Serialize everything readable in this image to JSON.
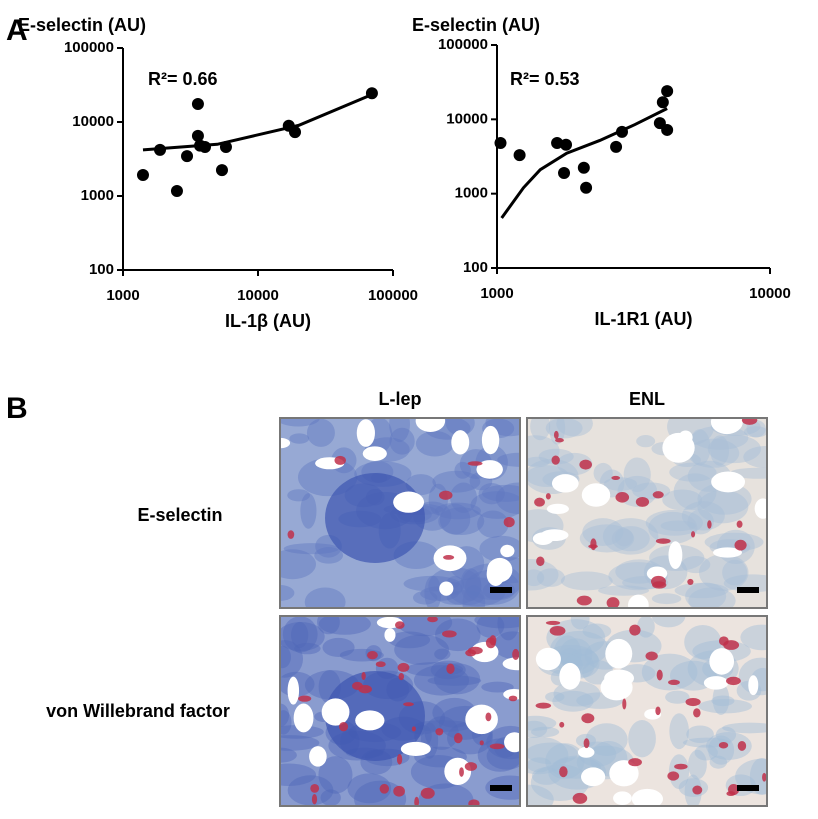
{
  "panel_labels": [
    "A",
    "B"
  ],
  "chart_data": [
    {
      "type": "scatter",
      "ylabel": "E-selectin (AU)",
      "xlabel": "IL-1β (AU)",
      "annotation": "R²= 0.66",
      "xlog": true,
      "ylog": true,
      "xlim": [
        1000,
        100000
      ],
      "xticks": [
        1000,
        10000,
        100000
      ],
      "ylim": [
        100,
        100000
      ],
      "yticks": [
        100,
        1000,
        10000,
        100000
      ],
      "series": [
        {
          "color": "#000000",
          "x": [
            1406,
            1880,
            2510,
            2980,
            3590,
            3590,
            3720,
            4050,
            5790,
            5410,
            16900,
            18800,
            69800
          ],
          "values": [
            1920,
            4200,
            1170,
            3460,
            17500,
            6500,
            4800,
            4600,
            4600,
            2240,
            8900,
            7300,
            24500
          ]
        }
      ],
      "fit": {
        "color": "#000000",
        "x": [
          1406,
          5000,
          20000,
          70000
        ],
        "values": [
          4200,
          5000,
          9000,
          23500
        ]
      }
    },
    {
      "type": "scatter",
      "ylabel": "E-selectin (AU)",
      "xlabel": "IL-1R1 (AU)",
      "annotation": "R²= 0.53",
      "xlog": true,
      "ylog": true,
      "xlim": [
        1000,
        10000
      ],
      "xticks": [
        1000,
        10000
      ],
      "ylim": [
        100,
        100000
      ],
      "yticks": [
        100,
        1000,
        10000,
        100000
      ],
      "series": [
        {
          "color": "#000000",
          "x": [
            1030,
            1210,
            1660,
            1760,
            1790,
            2080,
            2120,
            2730,
            2870,
            3950,
            4050,
            4200,
            4200
          ],
          "values": [
            4800,
            3300,
            4800,
            1900,
            4550,
            2230,
            1200,
            4260,
            6770,
            8900,
            17000,
            24000,
            7200
          ]
        }
      ],
      "fit": {
        "color": "#000000",
        "x": [
          1040,
          1250,
          1440,
          1800,
          2380,
          3200,
          4200
        ],
        "values": [
          470,
          1200,
          2100,
          3500,
          5200,
          8500,
          14000
        ]
      }
    }
  ],
  "histology": {
    "columns": [
      "L-lep",
      "ENL"
    ],
    "rows": [
      "E-selectin",
      "von Willebrand factor"
    ]
  }
}
